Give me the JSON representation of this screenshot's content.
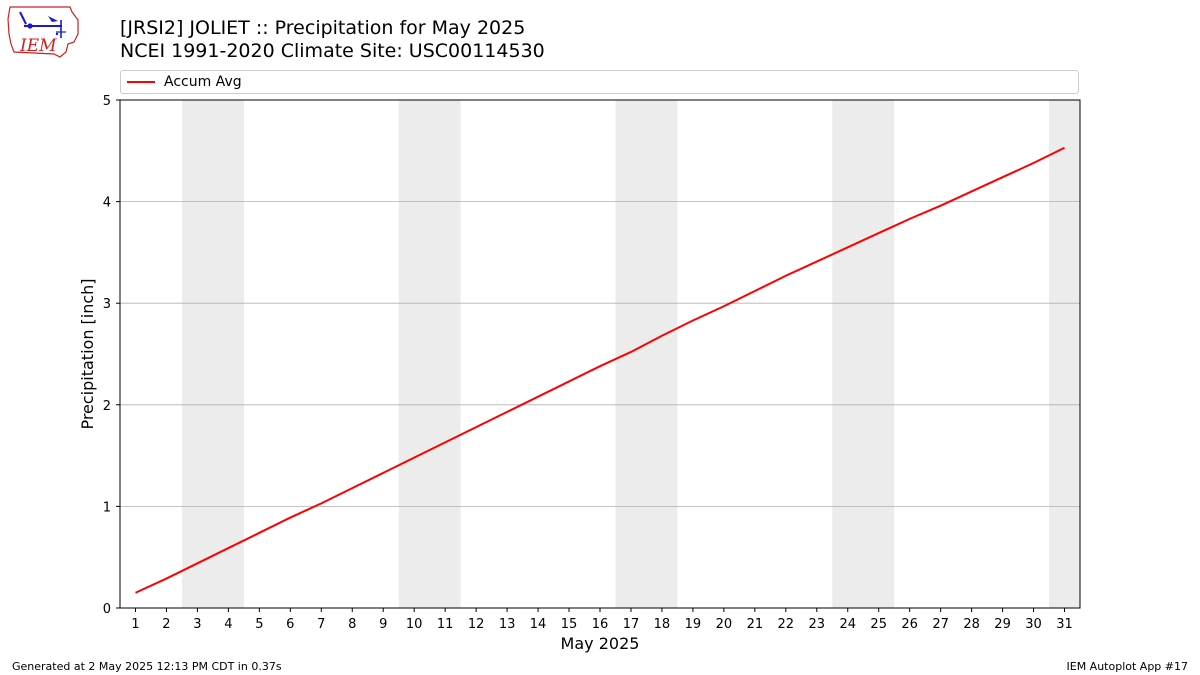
{
  "header": {
    "title_line1": "[JRSI2] JOLIET :: Precipitation for May 2025",
    "title_line2": "NCEI 1991-2020 Climate Site: USC00114530",
    "logo_text": "IEM"
  },
  "footer": {
    "left": "Generated at 2 May 2025 12:13 PM CDT in 0.37s",
    "right": "IEM Autoplot App #17"
  },
  "colors": {
    "series": "#ff0000",
    "weekend_band": "#ececec",
    "grid": "#b0b0b0",
    "logo_red": "#cc2222",
    "logo_blue": "#1a1acc"
  },
  "chart_data": {
    "type": "line",
    "title": "[JRSI2] JOLIET :: Precipitation for May 2025",
    "subtitle": "NCEI 1991-2020 Climate Site: USC00114530",
    "xlabel": "May 2025",
    "ylabel": "Precipitation [inch]",
    "x": [
      1,
      2,
      3,
      4,
      5,
      6,
      7,
      8,
      9,
      10,
      11,
      12,
      13,
      14,
      15,
      16,
      17,
      18,
      19,
      20,
      21,
      22,
      23,
      24,
      25,
      26,
      27,
      28,
      29,
      30,
      31
    ],
    "xlim": [
      0.5,
      31.5
    ],
    "ylim": [
      0,
      5
    ],
    "yticks": [
      0,
      1,
      2,
      3,
      4,
      5
    ],
    "grid": "y-major",
    "legend_position": "top (above plot, full width)",
    "weekend_spans": [
      [
        3,
        4
      ],
      [
        10,
        11
      ],
      [
        17,
        18
      ],
      [
        24,
        25
      ],
      [
        31,
        31
      ]
    ],
    "series": [
      {
        "name": "Accum Avg",
        "values": [
          0.15,
          0.29,
          0.44,
          0.59,
          0.74,
          0.89,
          1.03,
          1.18,
          1.33,
          1.48,
          1.63,
          1.78,
          1.93,
          2.08,
          2.23,
          2.38,
          2.52,
          2.68,
          2.83,
          2.97,
          3.12,
          3.27,
          3.41,
          3.55,
          3.69,
          3.83,
          3.96,
          4.1,
          4.24,
          4.38,
          4.53
        ]
      }
    ]
  }
}
